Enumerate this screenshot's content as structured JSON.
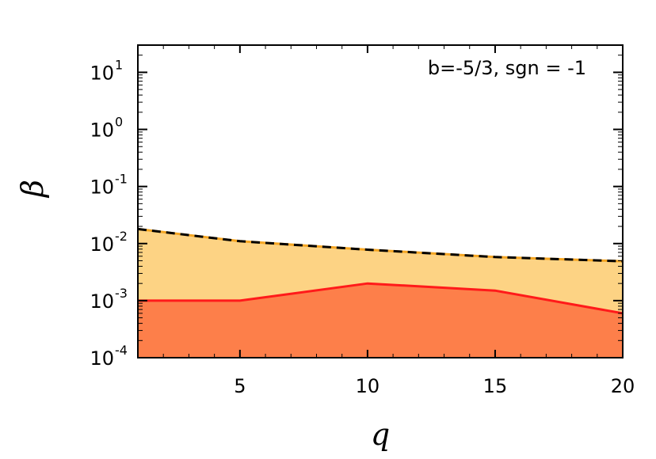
{
  "chart_data": {
    "type": "area",
    "title": "",
    "xlabel": "q",
    "ylabel": "β",
    "annotation": "b=-5/3, sgn = -1",
    "x_scale": "linear",
    "y_scale": "log",
    "xlim": [
      1,
      20
    ],
    "ylim": [
      0.0001,
      30
    ],
    "x_ticks": [
      5,
      10,
      15,
      20
    ],
    "x_tick_labels": [
      "5",
      "10",
      "15",
      "20"
    ],
    "y_ticks": [
      0.0001,
      0.001,
      0.01,
      0.1,
      1,
      10
    ],
    "y_tick_bases": [
      "10",
      "10",
      "10",
      "10",
      "10",
      "10"
    ],
    "y_tick_exponents": [
      "-4",
      "-3",
      "-2",
      "-1",
      "0",
      "1"
    ],
    "grid": false,
    "series": [
      {
        "x": [
          1,
          5,
          10,
          15,
          20
        ],
        "values": [
          0.018,
          0.011,
          0.0078,
          0.0058,
          0.0049
        ],
        "line_color": "#000000",
        "dash_color": "#f5a623",
        "line_style": "dashed",
        "fill_color": "#fdd384"
      },
      {
        "x": [
          1,
          5,
          10,
          15,
          20
        ],
        "values": [
          0.001,
          0.001,
          0.002,
          0.0015,
          0.0006
        ],
        "line_color": "#ff1a1a",
        "line_style": "solid",
        "fill_color": "#fd7f4a"
      }
    ]
  }
}
